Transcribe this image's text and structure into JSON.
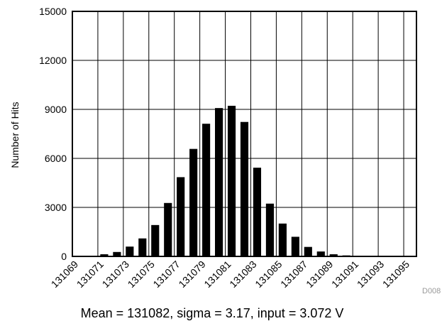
{
  "chart_data": {
    "type": "bar",
    "ylabel": "Number of Hits",
    "caption": "Mean = 131082, sigma = 3.17, input = 3.072 V",
    "figure_id": "D008",
    "ylim": [
      0,
      15000
    ],
    "yticks": [
      0,
      3000,
      6000,
      9000,
      12000,
      15000
    ],
    "xlim": [
      131069,
      131096
    ],
    "xtick_labels": [
      "131069",
      "131071",
      "131073",
      "131075",
      "131077",
      "131079",
      "131081",
      "131083",
      "131085",
      "131087",
      "131089",
      "131091",
      "131093",
      "131095"
    ],
    "categories": [
      131069,
      131070,
      131071,
      131072,
      131073,
      131074,
      131075,
      131076,
      131077,
      131078,
      131079,
      131080,
      131081,
      131082,
      131083,
      131084,
      131085,
      131086,
      131087,
      131088,
      131089,
      131090,
      131091,
      131092,
      131093,
      131094,
      131095
    ],
    "values": [
      10,
      30,
      130,
      270,
      600,
      1100,
      1920,
      3270,
      4850,
      6580,
      8120,
      9080,
      9220,
      8230,
      5430,
      3230,
      2010,
      1200,
      580,
      300,
      130,
      60,
      30,
      15,
      10,
      10,
      10
    ],
    "grid": true,
    "bar_color": "#000000"
  }
}
